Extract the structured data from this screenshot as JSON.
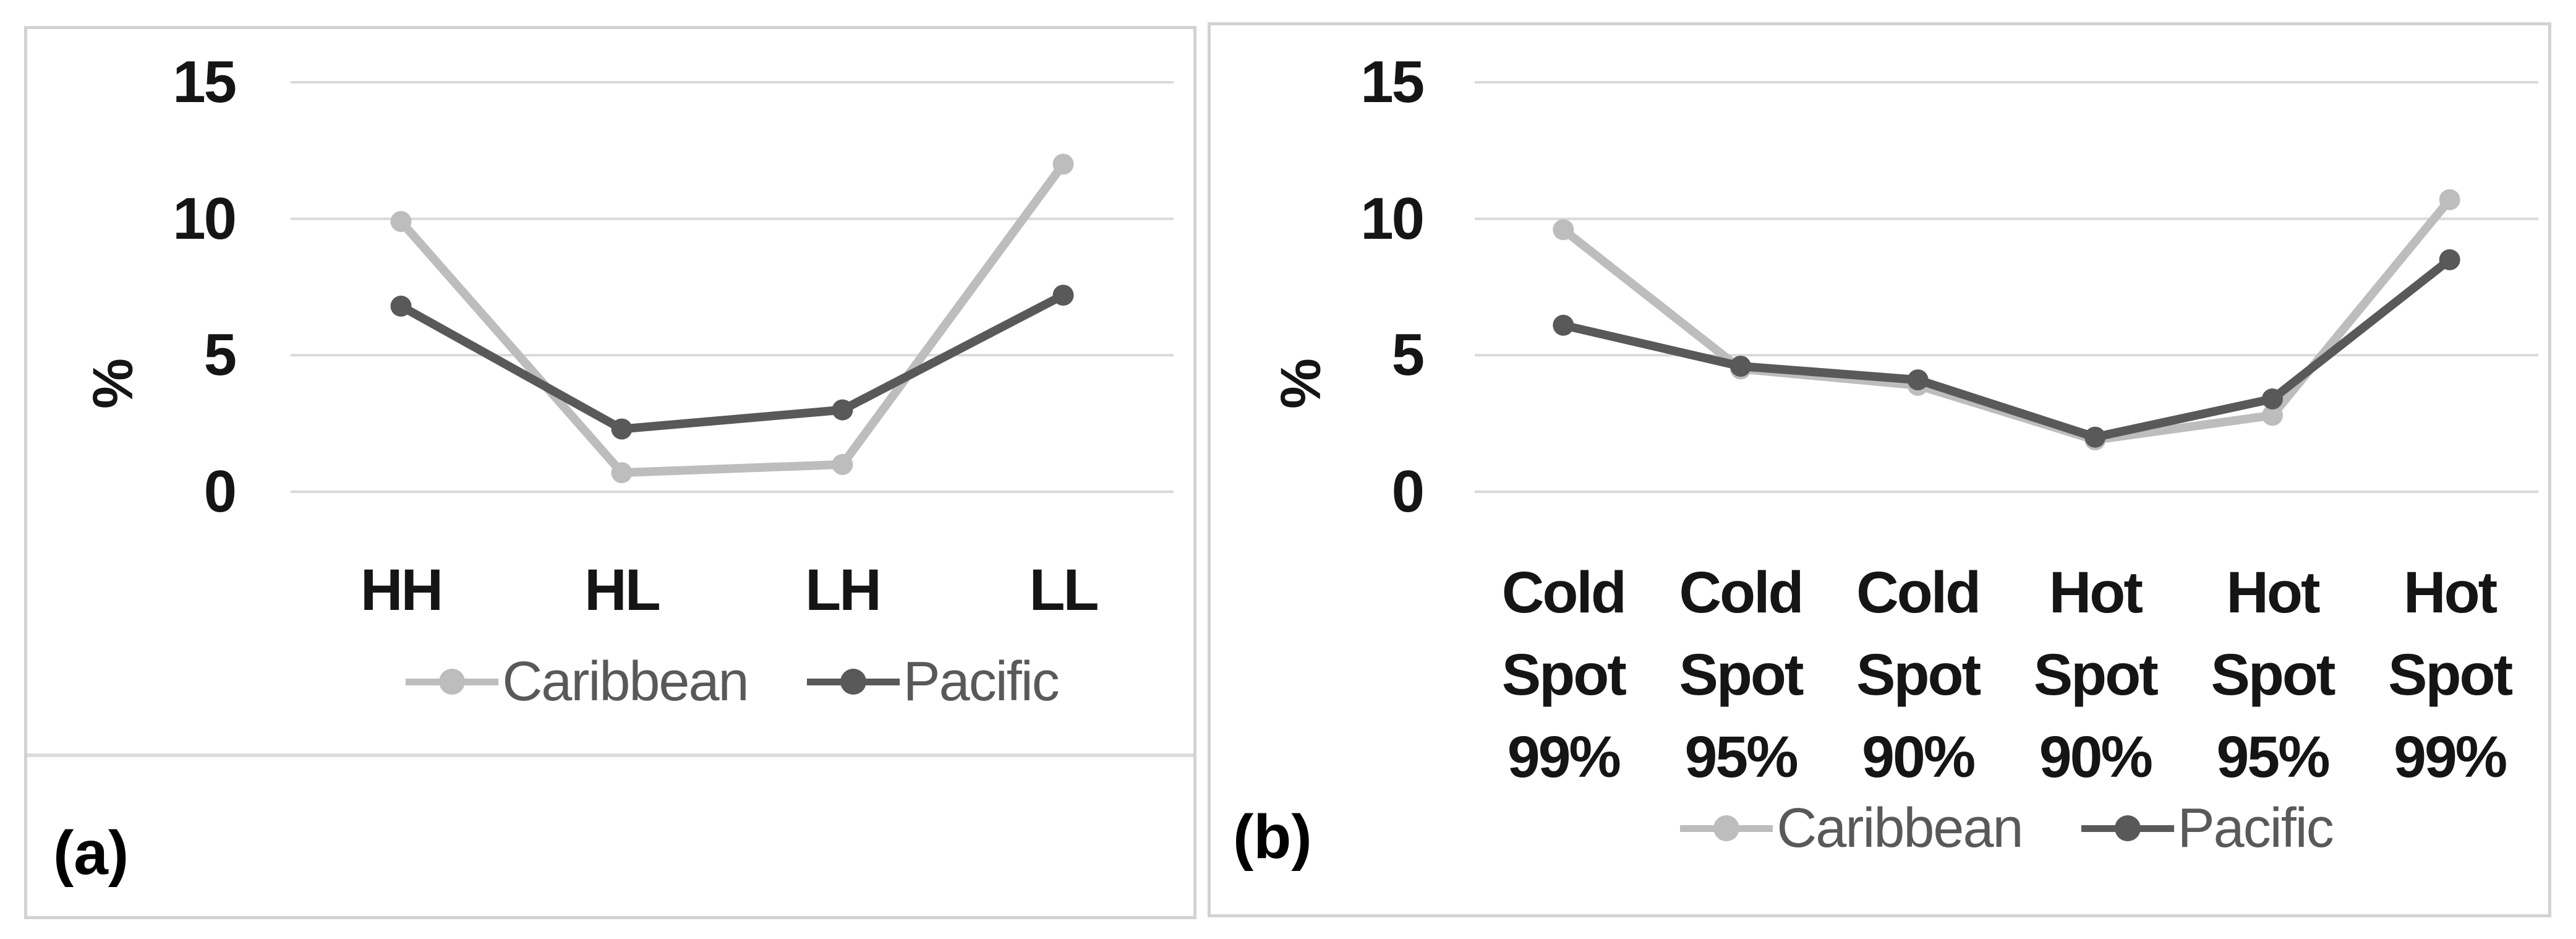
{
  "figure": {
    "colors": {
      "gridline": "#d9d9d9",
      "panel_border": "#d2d2d2",
      "caribbean": "#bdbdbd",
      "pacific": "#595959",
      "tick_text": "#151515",
      "legend_text": "#595959"
    },
    "panels": [
      {
        "caption": "(a)",
        "chart_data": {
          "type": "line",
          "title": "",
          "xlabel": "",
          "ylabel": "%",
          "ylim": [
            0,
            15
          ],
          "y_ticks": [
            15,
            10,
            5,
            0
          ],
          "grid": true,
          "legend_position": "bottom",
          "categories": [
            "HH",
            "HL",
            "LH",
            "LL"
          ],
          "series": [
            {
              "name": "Caribbean",
              "color": "#bdbdbd",
              "values": [
                9.9,
                0.7,
                1.0,
                12.0
              ]
            },
            {
              "name": "Pacific",
              "color": "#595959",
              "values": [
                6.8,
                2.3,
                3.0,
                7.2
              ]
            }
          ]
        }
      },
      {
        "caption": "(b)",
        "chart_data": {
          "type": "line",
          "title": "",
          "xlabel": "",
          "ylabel": "%",
          "ylim": [
            0,
            15
          ],
          "y_ticks": [
            15,
            10,
            5,
            0
          ],
          "grid": true,
          "legend_position": "bottom",
          "categories": [
            "Cold Spot 99%",
            "Cold Spot 95%",
            "Cold Spot 90%",
            "Hot Spot 90%",
            "Hot Spot 95%",
            "Hot Spot 99%"
          ],
          "series": [
            {
              "name": "Caribbean",
              "color": "#bdbdbd",
              "values": [
                9.6,
                4.5,
                3.9,
                1.9,
                2.8,
                10.7
              ]
            },
            {
              "name": "Pacific",
              "color": "#595959",
              "values": [
                6.1,
                4.6,
                4.1,
                2.0,
                3.4,
                8.5
              ]
            }
          ]
        }
      }
    ]
  }
}
